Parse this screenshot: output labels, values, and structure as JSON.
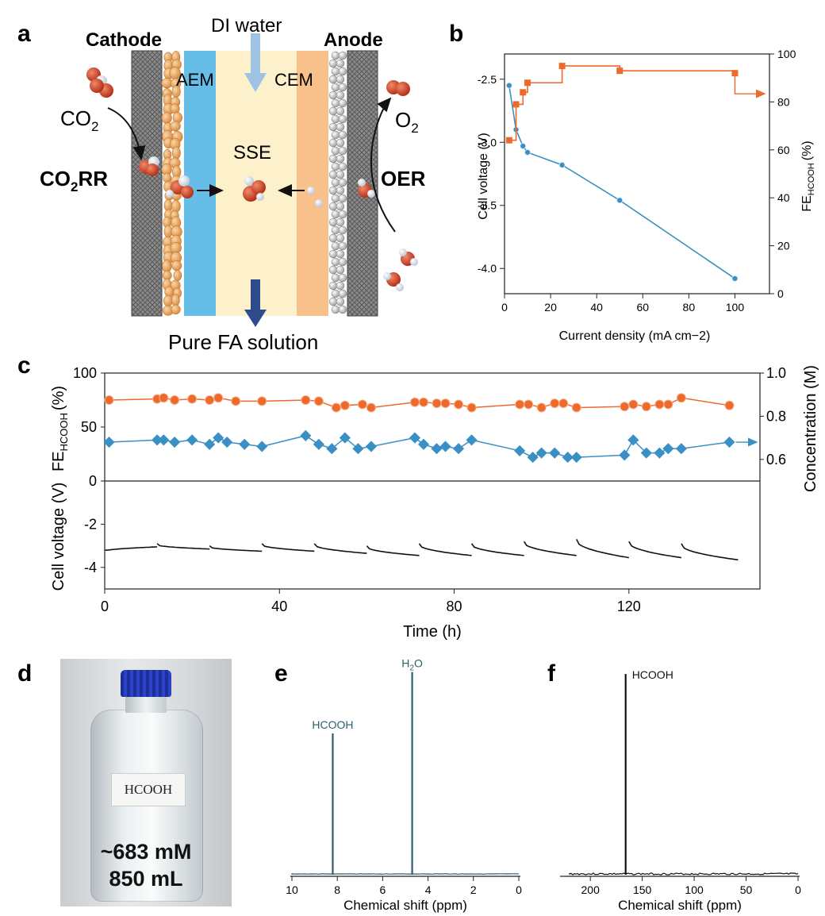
{
  "panels": {
    "a": {
      "letter": "a",
      "cathode": "Cathode",
      "anode": "Anode",
      "di_water": "DI water",
      "aem": "AEM",
      "cem": "CEM",
      "sse": "SSE",
      "co2": "CO",
      "co2_sub": "2",
      "o2": "O",
      "o2_sub": "2",
      "co2rr": "CO",
      "co2rr_sub": "2",
      "co2rr_tail": "RR",
      "oer": "OER",
      "product": "Pure FA solution",
      "colors": {
        "gdl": "#7d7d7d",
        "aem": "#66bde8",
        "sse": "#fdf1cc",
        "cem": "#f8c08a",
        "catalyst": "#f2b06a",
        "arrow": "#2e4c8c",
        "water_arrow": "#9fc3e3"
      }
    },
    "b": {
      "letter": "b"
    },
    "c": {
      "letter": "c"
    },
    "d": {
      "letter": "d",
      "label": "HCOOH",
      "conc": "~683 mM",
      "volume": "850 mL"
    },
    "e": {
      "letter": "e"
    },
    "f": {
      "letter": "f"
    }
  },
  "chart_data": [
    {
      "id": "b",
      "type": "line",
      "xlabel": "Current density (mA cm−2)",
      "ylabel_left": "Cell voltage (V)",
      "ylabel_right": "FE",
      "ylabel_right_sub": "HCOOH",
      "ylabel_right_unit": "(%)",
      "xlim": [
        0,
        115
      ],
      "ylim_left": [
        -4.2,
        -2.3
      ],
      "ylim_right": [
        0,
        100
      ],
      "x_ticks": [
        "0",
        "20",
        "40",
        "60",
        "80",
        "100"
      ],
      "y_left_ticks": [
        "-2.5",
        "-3.0",
        "-3.5",
        "-4.0"
      ],
      "y_right_ticks": [
        "0",
        "20",
        "40",
        "60",
        "80",
        "100"
      ],
      "series": [
        {
          "axis": "left",
          "color": "#3a8fc4",
          "marker": "circle",
          "x": [
            2,
            5,
            8,
            10,
            25,
            50,
            100
          ],
          "y": [
            -2.55,
            -2.9,
            -3.03,
            -3.08,
            -3.18,
            -3.46,
            -4.08
          ]
        },
        {
          "axis": "right",
          "color": "#ee6a2c",
          "marker": "square",
          "x": [
            2,
            5,
            8,
            10,
            25,
            50,
            100
          ],
          "y": [
            64,
            79,
            84,
            88,
            95,
            93,
            92
          ]
        }
      ]
    },
    {
      "id": "c",
      "type": "line",
      "xlabel": "Time (h)",
      "ylabel_upper": "FE",
      "ylabel_upper_sub": "HCOOH",
      "ylabel_upper_unit": "(%)",
      "ylabel_lower": "Cell voltage (V)",
      "ylabel_right": "Concentration (M)",
      "xlim": [
        0,
        150
      ],
      "x_ticks": [
        "0",
        "40",
        "80",
        "120"
      ],
      "y_upper_ticks": [
        "100",
        "50",
        "0"
      ],
      "y_lower_ticks": [
        "-2",
        "-4"
      ],
      "y_right_ticks": [
        "1.0",
        "0.8",
        "0.6"
      ],
      "fe": {
        "color": "#ee6a2c",
        "x": [
          1,
          12,
          13.5,
          16,
          20,
          24,
          26,
          30,
          36,
          46,
          49,
          53,
          55,
          59,
          61,
          71,
          73,
          76,
          78,
          81,
          84,
          95,
          97,
          100,
          103,
          105,
          108,
          119,
          121,
          124,
          127,
          129,
          132,
          143
        ],
        "y": [
          75,
          76,
          77,
          75,
          76,
          75,
          77,
          74,
          74,
          75,
          74,
          68,
          70,
          71,
          68,
          73,
          73,
          72,
          72,
          71,
          68,
          71,
          71,
          68,
          72,
          72,
          68,
          69,
          71,
          69,
          71,
          71,
          77,
          70
        ]
      },
      "conc": {
        "color": "#3a8fc4",
        "x": [
          1,
          12,
          13.5,
          16,
          20,
          24,
          26,
          28,
          32,
          36,
          46,
          49,
          52,
          55,
          58,
          61,
          71,
          73,
          76,
          78,
          81,
          84,
          95,
          98,
          100,
          103,
          106,
          108,
          119,
          121,
          124,
          127,
          129,
          132,
          143
        ],
        "y": [
          0.68,
          0.69,
          0.69,
          0.68,
          0.69,
          0.67,
          0.7,
          0.68,
          0.67,
          0.66,
          0.71,
          0.67,
          0.65,
          0.7,
          0.65,
          0.66,
          0.7,
          0.67,
          0.65,
          0.66,
          0.65,
          0.69,
          0.64,
          0.61,
          0.63,
          0.63,
          0.61,
          0.61,
          0.62,
          0.69,
          0.63,
          0.63,
          0.65,
          0.65,
          0.68
        ]
      },
      "voltage": {
        "color": "#111111",
        "segments": [
          [
            0,
            12,
            -3.2,
            -3.0
          ],
          [
            12,
            24,
            -2.9,
            -3.1
          ],
          [
            24,
            36,
            -3.0,
            -3.2
          ],
          [
            36,
            48,
            -2.9,
            -3.2
          ],
          [
            48,
            60,
            -2.9,
            -3.3
          ],
          [
            60,
            72,
            -3.0,
            -3.4
          ],
          [
            72,
            84,
            -2.9,
            -3.4
          ],
          [
            84,
            96,
            -2.9,
            -3.4
          ],
          [
            96,
            108,
            -2.8,
            -3.4
          ],
          [
            108,
            120,
            -2.7,
            -3.5
          ],
          [
            120,
            132,
            -2.8,
            -3.5
          ],
          [
            132,
            145,
            -2.9,
            -3.6
          ]
        ]
      }
    },
    {
      "id": "e",
      "type": "line",
      "xlabel": "Chemical shift (ppm)",
      "xlim": [
        10,
        0
      ],
      "x_ticks": [
        "10",
        "8",
        "6",
        "4",
        "2",
        "0"
      ],
      "color": "#2e5e6e",
      "peaks": [
        {
          "x": 8.2,
          "height": 0.69,
          "label": "HCOOH"
        },
        {
          "x": 4.7,
          "height": 0.99,
          "label_main": "H",
          "label_sub": "2",
          "label_tail": "O"
        }
      ]
    },
    {
      "id": "f",
      "type": "line",
      "xlabel": "Chemical shift (ppm)",
      "xlim": [
        220,
        0
      ],
      "x_ticks": [
        "200",
        "150",
        "100",
        "50",
        "0"
      ],
      "color": "#111111",
      "peaks": [
        {
          "x": 166,
          "height": 0.98,
          "label": "HCOOH"
        }
      ]
    }
  ]
}
